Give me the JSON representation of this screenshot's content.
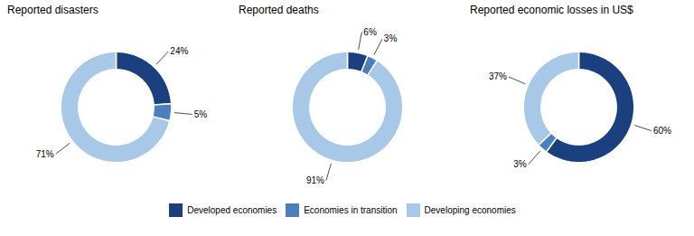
{
  "chart_data": [
    {
      "type": "donut",
      "title": "Reported disasters",
      "categories": [
        "Developed economies",
        "Economies in transition",
        "Developing economies"
      ],
      "values": [
        24,
        5,
        71
      ],
      "value_labels": [
        "24%",
        "5%",
        "71%"
      ],
      "colors": [
        "#1a4080",
        "#4a7fc0",
        "#a8c8e8"
      ],
      "data_labels": true,
      "legend": "bottom"
    },
    {
      "type": "donut",
      "title": "Reported deaths",
      "categories": [
        "Developed economies",
        "Economies in transition",
        "Developing economies"
      ],
      "values": [
        6,
        3,
        91
      ],
      "value_labels": [
        "6%",
        "3%",
        "91%"
      ],
      "colors": [
        "#1a4080",
        "#4a7fc0",
        "#a8c8e8"
      ],
      "data_labels": true,
      "legend": "bottom"
    },
    {
      "type": "donut",
      "title": "Reported economic losses in US$",
      "categories": [
        "Developed economies",
        "Economies in transition",
        "Developing economies"
      ],
      "values": [
        60,
        3,
        37
      ],
      "value_labels": [
        "60%",
        "3%",
        "37%"
      ],
      "colors": [
        "#1a4080",
        "#4a7fc0",
        "#a8c8e8"
      ],
      "data_labels": true,
      "legend": "bottom"
    }
  ]
}
